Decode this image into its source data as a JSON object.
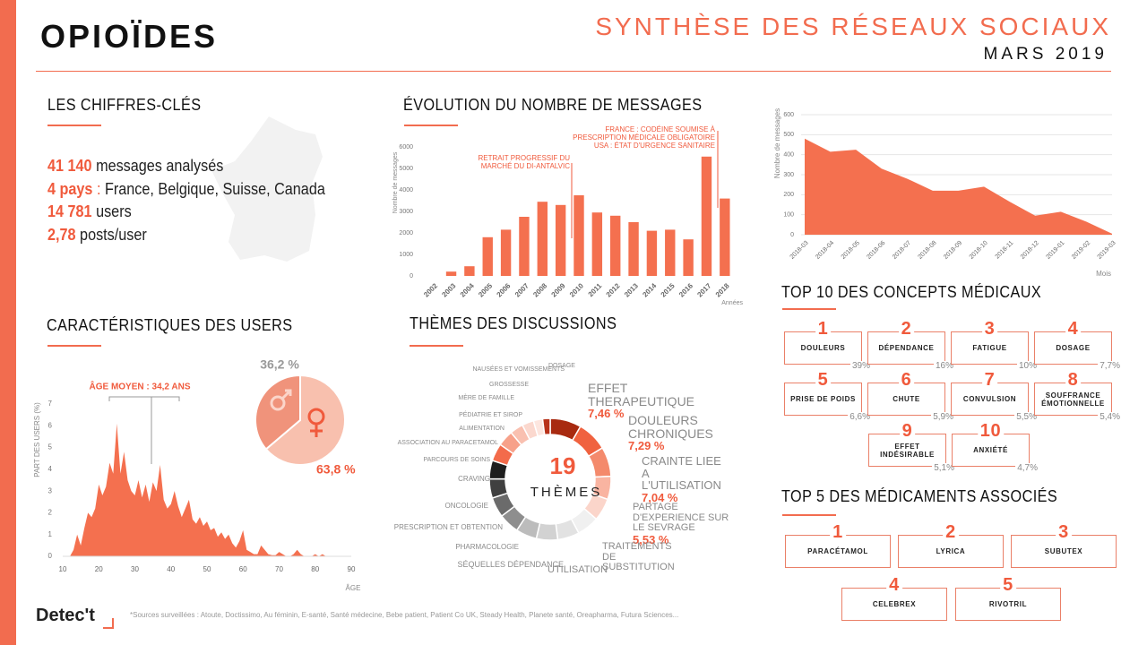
{
  "header": {
    "title": "OPIOÏDES",
    "subtitle": "SYNTHÈSE DES RÉSEAUX SOCIAUX",
    "date": "MARS 2019"
  },
  "sections": {
    "key_figures": "LES CHIFFRES-CLÉS",
    "evolution": "ÉVOLUTION DU NOMBRE DE MESSAGES",
    "users": "CARACTÉRISTIQUES DES USERS",
    "themes": "THÈMES DES DISCUSSIONS",
    "concepts": "TOP 10 DES CONCEPTS MÉDICAUX",
    "drugs": "TOP 5 DES MÉDICAMENTS ASSOCIÉS"
  },
  "key_figures": [
    {
      "value": "41 140",
      "label": "messages analysés"
    },
    {
      "value": "4 pays",
      "separator": ":",
      "label": "France, Belgique, Suisse, Canada"
    },
    {
      "value": "14 781",
      "label": "users"
    },
    {
      "value": "2,78",
      "label": "posts/user"
    }
  ],
  "chart_data": [
    {
      "type": "bar",
      "categories": [
        "2002",
        "2003",
        "2004",
        "2005",
        "2006",
        "2007",
        "2008",
        "2009",
        "2010",
        "2011",
        "2012",
        "2013",
        "2014",
        "2015",
        "2016",
        "2017",
        "2018"
      ],
      "values": [
        0,
        200,
        450,
        1800,
        2150,
        2750,
        3450,
        3300,
        3750,
        2950,
        2800,
        2500,
        2100,
        2150,
        1700,
        5550,
        3600
      ],
      "color": "#f4704f",
      "ylim": [
        0,
        6000
      ],
      "yticks": [
        0,
        1000,
        2000,
        3000,
        4000,
        5000,
        6000
      ],
      "grid": false,
      "x_label": "Années",
      "y_label": "Nombre de messages",
      "annotations": [
        "RETRAIT PROGRESSIF DU\nMARCHÉ DU DI-ANTALVIC",
        "FRANCE : CODÉINE SOUMISE À\nPRESCRIPTION MÉDICALE OBLIGATOIRE\nUSA : ÉTAT D'URGENCE SANITAIRE"
      ]
    },
    {
      "type": "area",
      "categories": [
        "2018-03",
        "2018-04",
        "2018-05",
        "2018-06",
        "2018-07",
        "2018-08",
        "2018-09",
        "2018-10",
        "2018-11",
        "2018-12",
        "2019-01",
        "2019-02",
        "2019-03"
      ],
      "values": [
        480,
        415,
        425,
        330,
        280,
        220,
        220,
        240,
        165,
        95,
        115,
        65,
        5
      ],
      "color": "#f4704f",
      "ylim": [
        0,
        600
      ],
      "yticks": [
        0,
        100,
        200,
        300,
        400,
        500,
        600
      ],
      "grid": true,
      "x_label": "Mois",
      "y_label": "Nombre de messages"
    },
    {
      "type": "area",
      "x": [
        10,
        11,
        12,
        13,
        14,
        15,
        16,
        17,
        18,
        19,
        20,
        21,
        22,
        23,
        24,
        25,
        26,
        27,
        28,
        29,
        30,
        31,
        32,
        33,
        34,
        35,
        36,
        37,
        38,
        39,
        40,
        41,
        42,
        43,
        44,
        45,
        46,
        47,
        48,
        49,
        50,
        51,
        52,
        53,
        54,
        55,
        56,
        57,
        58,
        59,
        60,
        61,
        62,
        63,
        64,
        65,
        66,
        67,
        68,
        69,
        70,
        71,
        72,
        73,
        74,
        75,
        76,
        77,
        78,
        79,
        80,
        81,
        82,
        83,
        84,
        85
      ],
      "values": [
        0,
        0,
        0,
        0.3,
        1.0,
        0.5,
        1.3,
        2.0,
        1.8,
        2.2,
        3.3,
        2.8,
        3.2,
        4.3,
        3.8,
        6.1,
        3.8,
        4.8,
        3.5,
        3.0,
        2.8,
        3.5,
        2.7,
        3.3,
        2.5,
        3.4,
        3.0,
        4.2,
        2.6,
        2.2,
        2.4,
        3.0,
        2.3,
        1.8,
        2.2,
        2.6,
        1.7,
        1.5,
        1.8,
        1.4,
        1.6,
        1.2,
        1.3,
        0.9,
        1.1,
        0.8,
        1.0,
        0.6,
        0.4,
        0.7,
        1.2,
        0.3,
        0.2,
        0.1,
        0.1,
        0.5,
        0.3,
        0.1,
        0.05,
        0.05,
        0.2,
        0.1,
        0,
        0,
        0.1,
        0.3,
        0.1,
        0,
        0,
        0,
        0.1,
        0,
        0.1,
        0,
        0,
        0
      ],
      "color": "#f4704f",
      "xlim": [
        10,
        90
      ],
      "xticks": [
        10,
        20,
        30,
        40,
        50,
        60,
        70,
        80,
        90
      ],
      "ylim": [
        0,
        7
      ],
      "yticks": [
        0,
        1,
        2,
        3,
        4,
        5,
        6,
        7
      ],
      "grid": false,
      "x_label": "ÂGE",
      "y_label": "PART DES USERS (%)",
      "annotations": [
        "ÂGE MOYEN : 34,2 ANS"
      ]
    },
    {
      "type": "pie",
      "values": [
        63.8,
        36.2
      ],
      "value_labels": [
        "63,8 %",
        "36,2 %"
      ],
      "colors": [
        "#f8c0ae",
        "#f0937b"
      ]
    },
    {
      "type": "donut",
      "center_value": 19,
      "center_label": "THÈMES",
      "categories": [
        "EFFET THERAPEUTIQUE",
        "DOULEURS CHRONIQUES",
        "CRAINTE LIEE A L'UTILISATION",
        "PARTAGE D'EXPERIENCE SUR LE SEVRAGE",
        "TRAITEMENTS DE SUBSTITUTION",
        "UTILISATION",
        "SÉQUELLES DÉPENDANCE",
        "PHARMACOLOGIE",
        "PRESCRIPTION ET OBTENTION",
        "ONCOLOGIE",
        "CRAVING",
        "PARCOURS DE SOINS",
        "ASSOCIATION AU PARACETAMOL",
        "ALIMENTATION",
        "PÉDIATRIE ET SIROP",
        "MÈRE DE FAMILLE",
        "GROSSESSE",
        "NAUSÉES ET VOMISSEMENTS",
        "DOSAGE"
      ],
      "values": [
        7.46,
        7.29,
        7.04,
        5.53,
        5.4,
        5.3,
        5.2,
        5.1,
        5.0,
        4.9,
        4.8,
        4.6,
        4.4,
        4.2,
        3.8,
        3.2,
        2.8,
        2.2,
        1.8
      ],
      "value_labels": [
        "7,46 %",
        "7,29 %",
        "7,04 %",
        "5,53 %",
        null,
        null,
        null,
        null,
        null,
        null,
        null,
        null,
        null,
        null,
        null,
        null,
        null,
        null,
        null
      ],
      "colors": [
        "#a82a10",
        "#f0623f",
        "#f48a6c",
        "#f9b4a1",
        "#fbd5ca",
        "#f0f0f0",
        "#e2e2e2",
        "#d2d2d2",
        "#bcbcbc",
        "#8e8e8e",
        "#6b6b6b",
        "#404040",
        "#1e1e1e",
        "#f36b4b",
        "#f7a18a",
        "#f9c0b0",
        "#fbd8ce",
        "#fde6df",
        "#b8321a"
      ]
    }
  ],
  "concepts": [
    {
      "rank": 1,
      "name": "DOULEURS",
      "share": "39%"
    },
    {
      "rank": 2,
      "name": "DÉPENDANCE",
      "share": "16%"
    },
    {
      "rank": 3,
      "name": "FATIGUE",
      "share": "10%"
    },
    {
      "rank": 4,
      "name": "DOSAGE",
      "share": "7,7%"
    },
    {
      "rank": 5,
      "name": "PRISE DE POIDS",
      "share": "6,6%"
    },
    {
      "rank": 6,
      "name": "CHUTE",
      "share": "5,9%"
    },
    {
      "rank": 7,
      "name": "CONVULSION",
      "share": "5,5%"
    },
    {
      "rank": 8,
      "name": "SOUFFRANCE ÉMOTIONNELLE",
      "share": "5,4%"
    },
    {
      "rank": 9,
      "name": "EFFET INDÉSIRABLE",
      "share": "5,1%"
    },
    {
      "rank": 10,
      "name": "ANXIÉTÉ",
      "share": "4,7%"
    }
  ],
  "drugs": [
    {
      "rank": 1,
      "name": "PARACÉTAMOL"
    },
    {
      "rank": 2,
      "name": "LYRICA"
    },
    {
      "rank": 3,
      "name": "SUBUTEX"
    },
    {
      "rank": 4,
      "name": "CELEBREX"
    },
    {
      "rank": 5,
      "name": "RIVOTRIL"
    }
  ],
  "footer": {
    "logo": "Detec't",
    "sources": "*Sources surveillées : Atoute, Doctissimo, Au féminin, E-santé, Santé médecine, Bebe patient, Patient Co UK, Steady Health, Planete santé, Oreapharma, Futura Sciences..."
  }
}
